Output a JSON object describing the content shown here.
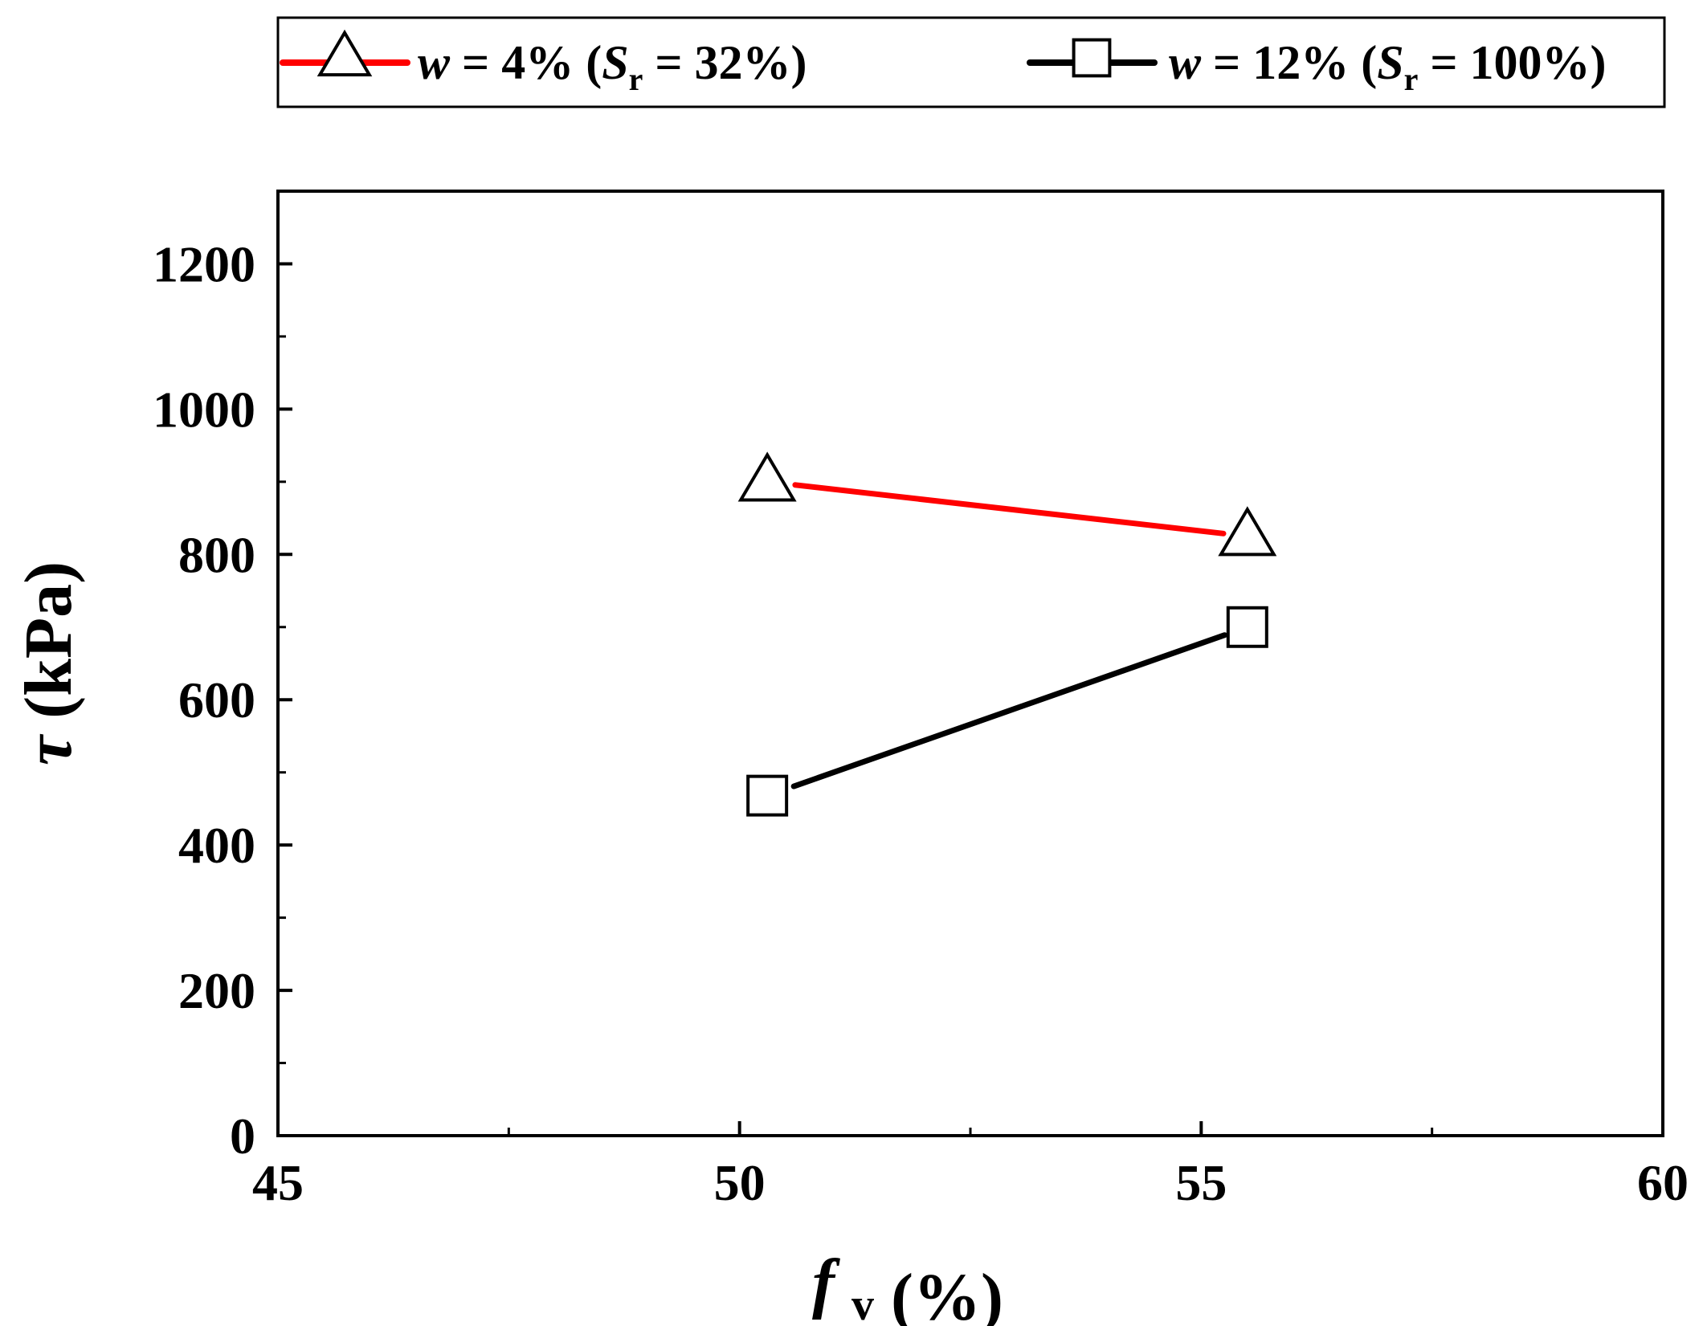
{
  "chart_data": {
    "type": "line",
    "title": "",
    "xlabel": {
      "main": "f",
      "sub": "v",
      "unit": "(%)"
    },
    "ylabel": {
      "main": "τ",
      "unit": "(kPa)"
    },
    "xlim": [
      45,
      60
    ],
    "ylim": [
      0,
      1300
    ],
    "x_ticks": [
      45,
      50,
      55,
      60
    ],
    "x_minor_ticks": [
      47.5,
      52.5,
      57.5
    ],
    "y_ticks": [
      0,
      200,
      400,
      600,
      800,
      1000,
      1200
    ],
    "y_minor_ticks": [
      100,
      300,
      500,
      700,
      900,
      1100
    ],
    "grid": false,
    "legend_position": "top, outside plot, single row",
    "series": [
      {
        "legend": {
          "var": "w",
          "eq": " = 4% (",
          "s": "S",
          "sub": "r",
          "tail": " = 32%)"
        },
        "color": "#ff0000",
        "marker": "triangle",
        "x": [
          50.3,
          55.5
        ],
        "y": [
          900,
          825
        ]
      },
      {
        "legend": {
          "var": "w",
          "eq": " = 12% (",
          "s": "S",
          "sub": "r",
          "tail": " = 100%)"
        },
        "color": "#000000",
        "marker": "square",
        "x": [
          50.3,
          55.5
        ],
        "y": [
          468,
          700
        ]
      }
    ]
  }
}
